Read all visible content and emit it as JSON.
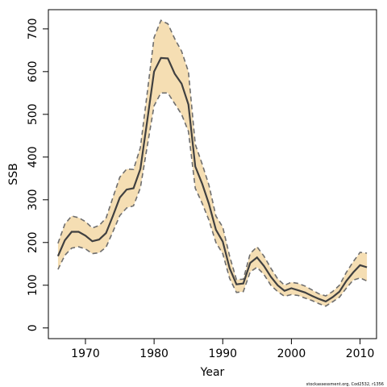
{
  "chart_data": {
    "type": "line",
    "xlabel": "Year",
    "ylabel": "SSB",
    "xlim": [
      1964.6,
      2012.4
    ],
    "ylim": [
      -25,
      745
    ],
    "xticks": [
      1970,
      1980,
      1990,
      2000,
      2010
    ],
    "yticks": [
      0,
      100,
      200,
      300,
      400,
      500,
      600,
      700
    ],
    "credit": "stockassessment.org, Cod2532, r1356",
    "colors": {
      "band": "#f5deb3",
      "estimate": "#404040",
      "bounds": "#6e6e6e",
      "frame": "#000000"
    },
    "x": [
      1966,
      1967,
      1968,
      1969,
      1970,
      1971,
      1972,
      1973,
      1974,
      1975,
      1976,
      1977,
      1978,
      1979,
      1980,
      1981,
      1982,
      1983,
      1984,
      1985,
      1986,
      1987,
      1988,
      1989,
      1990,
      1991,
      1992,
      1993,
      1994,
      1995,
      1996,
      1997,
      1998,
      1999,
      2000,
      2001,
      2002,
      2003,
      2004,
      2005,
      2006,
      2007,
      2008,
      2009,
      2010,
      2011
    ],
    "series": [
      {
        "role": "estimate",
        "values": [
          168,
          205,
          225,
          225,
          216,
          203,
          207,
          222,
          262,
          305,
          324,
          327,
          372,
          485,
          600,
          632,
          631,
          595,
          572,
          523,
          378,
          338,
          290,
          230,
          202,
          140,
          102,
          104,
          152,
          165,
          145,
          120,
          100,
          87,
          93,
          88,
          83,
          75,
          68,
          62,
          72,
          85,
          110,
          130,
          147,
          142
        ]
      },
      {
        "role": "upper",
        "values": [
          198,
          243,
          262,
          258,
          249,
          234,
          240,
          257,
          305,
          353,
          372,
          371,
          422,
          550,
          680,
          720,
          712,
          677,
          648,
          600,
          430,
          384,
          334,
          262,
          236,
          168,
          113,
          114,
          174,
          190,
          168,
          140,
          115,
          100,
          107,
          104,
          98,
          89,
          80,
          75,
          85,
          100,
          130,
          155,
          177,
          175
        ]
      },
      {
        "role": "lower",
        "values": [
          137,
          170,
          187,
          190,
          185,
          174,
          176,
          189,
          225,
          263,
          281,
          286,
          328,
          425,
          520,
          550,
          550,
          525,
          500,
          460,
          327,
          292,
          252,
          200,
          174,
          116,
          83,
          85,
          131,
          142,
          125,
          100,
          85,
          74,
          78,
          76,
          70,
          64,
          57,
          51,
          61,
          72,
          93,
          112,
          117,
          110
        ]
      }
    ]
  }
}
